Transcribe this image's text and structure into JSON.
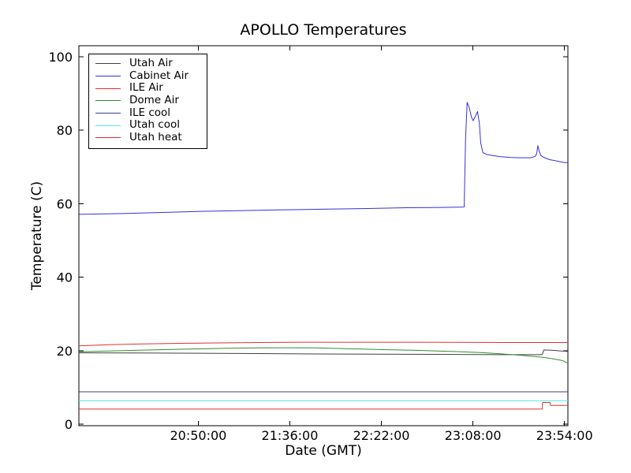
{
  "figure": {
    "title": "APOLLO Temperatures",
    "xlabel": "Date (GMT)",
    "ylabel": "Temperature (C)"
  },
  "legend": {
    "position": "upper left",
    "items": [
      {
        "label": "Utah Air",
        "color": "#404040"
      },
      {
        "label": "Cabinet Air",
        "color": "#3232dd"
      },
      {
        "label": "ILE Air",
        "color": "#dd3232"
      },
      {
        "label": "Dome Air",
        "color": "#2f8f2f"
      },
      {
        "label": "ILE cool",
        "color": "#3c3c8c"
      },
      {
        "label": "Utah cool",
        "color": "#55e8e8"
      },
      {
        "label": "Utah heat",
        "color": "#dd3232"
      }
    ]
  },
  "chart_data": {
    "type": "line",
    "title": "APOLLO Temperatures",
    "xlabel": "Date (GMT)",
    "ylabel": "Temperature (C)",
    "x_unit": "minutes after 19:50:00 GMT",
    "xlim": [
      0,
      245.7
    ],
    "ylim": [
      0,
      103
    ],
    "grid": false,
    "legend_position": "upper left",
    "y_ticks": [
      0,
      20,
      40,
      60,
      80,
      100
    ],
    "x_ticks": [
      {
        "m": 60,
        "label": "20:50:00"
      },
      {
        "m": 106,
        "label": "21:36:00"
      },
      {
        "m": 152,
        "label": "22:22:00"
      },
      {
        "m": 198,
        "label": "23:08:00"
      },
      {
        "m": 244,
        "label": "23:54:00"
      }
    ],
    "series": [
      {
        "name": "Utah Air",
        "color": "#404040",
        "points": [
          [
            0,
            19.4
          ],
          [
            30,
            19.35
          ],
          [
            60,
            19.3
          ],
          [
            90,
            19.2
          ],
          [
            120,
            19.1
          ],
          [
            150,
            19.05
          ],
          [
            180,
            19.0
          ],
          [
            200,
            18.95
          ],
          [
            212,
            18.9
          ],
          [
            224,
            18.9
          ],
          [
            232.8,
            18.9
          ],
          [
            233.6,
            20.2
          ],
          [
            236.5,
            20.15
          ],
          [
            239.5,
            20.05
          ],
          [
            242.5,
            19.9
          ],
          [
            245.7,
            19.8
          ]
        ]
      },
      {
        "name": "Cabinet Air",
        "color": "#3232dd",
        "points": [
          [
            0,
            57.1
          ],
          [
            20,
            57.3
          ],
          [
            40,
            57.6
          ],
          [
            60,
            57.9
          ],
          [
            80,
            58.1
          ],
          [
            100,
            58.3
          ],
          [
            122,
            58.5
          ],
          [
            145,
            58.7
          ],
          [
            165,
            58.9
          ],
          [
            183,
            59.0
          ],
          [
            193.6,
            59.1
          ],
          [
            194.3,
            78.0
          ],
          [
            195.1,
            87.6
          ],
          [
            196.2,
            86.0
          ],
          [
            197.2,
            83.6
          ],
          [
            198.1,
            82.6
          ],
          [
            199.2,
            83.8
          ],
          [
            200.3,
            85.1
          ],
          [
            201.2,
            82.0
          ],
          [
            201.9,
            76.5
          ],
          [
            203,
            73.9
          ],
          [
            205,
            73.4
          ],
          [
            208,
            73.1
          ],
          [
            212,
            72.8
          ],
          [
            217,
            72.6
          ],
          [
            222,
            72.5
          ],
          [
            227,
            72.5
          ],
          [
            229.3,
            72.9
          ],
          [
            230,
            73.6
          ],
          [
            230.6,
            75.8
          ],
          [
            231.3,
            74.2
          ],
          [
            232.2,
            73.1
          ],
          [
            234,
            72.5
          ],
          [
            236.5,
            72.0
          ],
          [
            239.5,
            71.7
          ],
          [
            242,
            71.4
          ],
          [
            244,
            71.2
          ],
          [
            245.7,
            71.2
          ]
        ]
      },
      {
        "name": "ILE Air",
        "color": "#dd3232",
        "points": [
          [
            0,
            21.3
          ],
          [
            15,
            21.6
          ],
          [
            30,
            21.8
          ],
          [
            50,
            22.0
          ],
          [
            70,
            22.1
          ],
          [
            90,
            22.2
          ],
          [
            115,
            22.3
          ],
          [
            140,
            22.3
          ],
          [
            165,
            22.3
          ],
          [
            190,
            22.25
          ],
          [
            215,
            22.2
          ],
          [
            245.7,
            22.2
          ]
        ]
      },
      {
        "name": "Dome Air",
        "color": "#2f8f2f",
        "points": [
          [
            0,
            19.7
          ],
          [
            15,
            19.9
          ],
          [
            30,
            20.1
          ],
          [
            45,
            20.3
          ],
          [
            60,
            20.5
          ],
          [
            75,
            20.65
          ],
          [
            90,
            20.75
          ],
          [
            105,
            20.8
          ],
          [
            118,
            20.75
          ],
          [
            130,
            20.6
          ],
          [
            142,
            20.45
          ],
          [
            155,
            20.25
          ],
          [
            168,
            20.1
          ],
          [
            180,
            19.9
          ],
          [
            190,
            19.75
          ],
          [
            197,
            19.6
          ],
          [
            203,
            19.45
          ],
          [
            210,
            19.2
          ],
          [
            217,
            18.95
          ],
          [
            223,
            18.7
          ],
          [
            228,
            18.45
          ],
          [
            233,
            18.2
          ],
          [
            237,
            17.9
          ],
          [
            240,
            17.6
          ],
          [
            242,
            17.4
          ],
          [
            243.5,
            17.2
          ],
          [
            244.6,
            16.8
          ],
          [
            245.7,
            16.7
          ]
        ]
      },
      {
        "name": "ILE cool",
        "color": "#3c3c8c",
        "points": [
          [
            0,
            8.8
          ],
          [
            245.7,
            8.8
          ]
        ]
      },
      {
        "name": "Utah cool",
        "color": "#55e8e8",
        "points": [
          [
            0,
            6.35
          ],
          [
            245.7,
            6.35
          ]
        ]
      },
      {
        "name": "Utah heat",
        "color": "#dd3232",
        "points": [
          [
            0,
            4.1
          ],
          [
            232.8,
            4.1
          ],
          [
            233,
            5.9
          ],
          [
            236.7,
            5.9
          ],
          [
            236.9,
            5.1
          ],
          [
            245.7,
            5.1
          ]
        ]
      }
    ]
  }
}
